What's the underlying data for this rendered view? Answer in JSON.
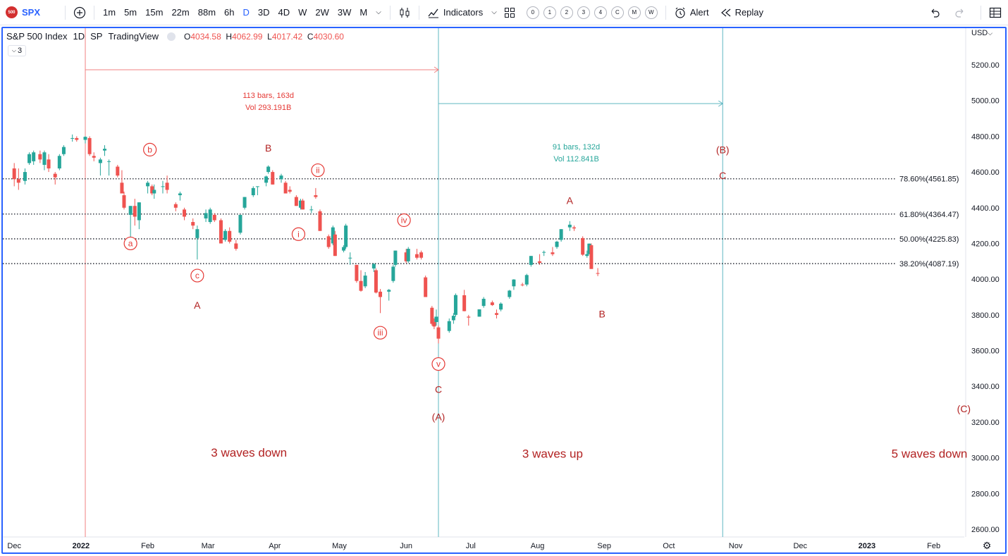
{
  "toolbar": {
    "symbol_logo": "500",
    "symbol": "SPX",
    "intervals": [
      "1m",
      "5m",
      "15m",
      "22m",
      "88m",
      "6h",
      "D",
      "3D",
      "4D",
      "W",
      "2W",
      "3W",
      "M"
    ],
    "active_interval": "D",
    "indicators_label": "Indicators",
    "layout_slots": [
      "0",
      "1",
      "2",
      "3",
      "4",
      "C",
      "M",
      "W"
    ],
    "alert_label": "Alert",
    "replay_label": "Replay"
  },
  "legend": {
    "title": "S&P 500 Index",
    "interval": "1D",
    "exchange": "SP",
    "source": "TradingView",
    "o_label": "O",
    "o_value": "4034.58",
    "h_label": "H",
    "h_value": "4062.99",
    "l_label": "L",
    "l_value": "4017.42",
    "c_label": "C",
    "c_value": "4030.60",
    "indicator_count": "3"
  },
  "currency": "USD",
  "colors": {
    "up": "#26a69a",
    "down": "#ef5350",
    "label": "#b22222",
    "fib": "#131722",
    "range_red": "#f08080",
    "range_teal": "#5fb7c2",
    "accent": "#2962ff"
  },
  "chart_data": {
    "type": "candlestick",
    "title": "S&P 500 Index",
    "y_axis": {
      "min": 2600,
      "max": 5200,
      "ticks": [
        "5200.00",
        "5000.00",
        "4800.00",
        "4600.00",
        "4400.00",
        "4200.00",
        "4000.00",
        "3800.00",
        "3600.00",
        "3400.00",
        "3200.00",
        "3000.00",
        "2800.00",
        "2600.00"
      ]
    },
    "x_axis": {
      "ticks": [
        "Dec",
        "2022",
        "Feb",
        "Mar",
        "Apr",
        "May",
        "Jun",
        "Jul",
        "Aug",
        "Sep",
        "Oct",
        "Nov",
        "Dec",
        "2023",
        "Feb"
      ],
      "bold_ticks": [
        "2022",
        "2023"
      ]
    },
    "fib_levels": [
      {
        "label": "78.60%(4561.85)",
        "value": 4561.85
      },
      {
        "label": "61.80%(4364.47)",
        "value": 4364.47
      },
      {
        "label": "50.00%(4225.83)",
        "value": 4225.83
      },
      {
        "label": "38.20%(4087.19)",
        "value": 4087.19
      }
    ],
    "date_ranges": [
      {
        "line1": "113 bars, 163d",
        "line2": "Vol 293.191B",
        "color": "red",
        "start": "2022-01-03",
        "end": "2022-06-16"
      },
      {
        "line1": "91 bars, 132d",
        "line2": "Vol 112.841B",
        "color": "teal",
        "start": "2022-06-16",
        "end": "2022-10-26"
      }
    ],
    "wave_labels": [
      {
        "text": "a",
        "circled": true,
        "date": "2022-01-24",
        "price": 4200
      },
      {
        "text": "b",
        "circled": true,
        "date": "2022-02-02",
        "price": 4725
      },
      {
        "text": "c",
        "circled": true,
        "date": "2022-02-24",
        "price": 4020
      },
      {
        "text": "A",
        "circled": false,
        "date": "2022-02-24",
        "price": 3855
      },
      {
        "text": "B",
        "circled": false,
        "date": "2022-03-29",
        "price": 4735
      },
      {
        "text": "ii",
        "circled": true,
        "date": "2022-04-21",
        "price": 4610
      },
      {
        "text": "i",
        "circled": true,
        "date": "2022-04-12",
        "price": 4252
      },
      {
        "text": "iv",
        "circled": true,
        "date": "2022-05-31",
        "price": 4330
      },
      {
        "text": "iii",
        "circled": true,
        "date": "2022-05-20",
        "price": 3700
      },
      {
        "text": "v",
        "circled": true,
        "date": "2022-06-16",
        "price": 3525
      },
      {
        "text": "C",
        "circled": false,
        "date": "2022-06-16",
        "price": 3383
      },
      {
        "text": "(A)",
        "circled": false,
        "date": "2022-06-16",
        "price": 3230
      },
      {
        "text": "A",
        "circled": false,
        "date": "2022-08-16",
        "price": 4440
      },
      {
        "text": "B",
        "circled": false,
        "date": "2022-08-31",
        "price": 3805
      },
      {
        "text": "(B)",
        "circled": false,
        "date": "2022-10-26",
        "price": 4725
      },
      {
        "text": "C",
        "circled": false,
        "date": "2022-10-26",
        "price": 4580
      },
      {
        "text": "(C)",
        "circled": false,
        "date": "2023-02-15",
        "price": 3275
      }
    ],
    "annotations": [
      {
        "text": "3 waves down",
        "date": "2022-03-20",
        "price": 3030
      },
      {
        "text": "3 waves up",
        "date": "2022-08-08",
        "price": 3025
      },
      {
        "text": "5 waves down",
        "date": "2023-01-30",
        "price": 3025
      }
    ],
    "candles": [
      {
        "x": "2021-12-01",
        "o": 4620,
        "h": 4650,
        "l": 4520,
        "c": 4560
      },
      {
        "x": "2021-12-03",
        "o": 4560,
        "h": 4620,
        "l": 4500,
        "c": 4540
      },
      {
        "x": "2021-12-06",
        "o": 4550,
        "h": 4620,
        "l": 4530,
        "c": 4600
      },
      {
        "x": "2021-12-08",
        "o": 4650,
        "h": 4710,
        "l": 4640,
        "c": 4700
      },
      {
        "x": "2021-12-10",
        "o": 4660,
        "h": 4720,
        "l": 4640,
        "c": 4710
      },
      {
        "x": "2021-12-13",
        "o": 4700,
        "h": 4720,
        "l": 4650,
        "c": 4670
      },
      {
        "x": "2021-12-15",
        "o": 4640,
        "h": 4720,
        "l": 4610,
        "c": 4710
      },
      {
        "x": "2021-12-17",
        "o": 4670,
        "h": 4700,
        "l": 4600,
        "c": 4620
      },
      {
        "x": "2021-12-20",
        "o": 4590,
        "h": 4600,
        "l": 4530,
        "c": 4570
      },
      {
        "x": "2021-12-22",
        "o": 4620,
        "h": 4700,
        "l": 4610,
        "c": 4690
      },
      {
        "x": "2021-12-24",
        "o": 4700,
        "h": 4750,
        "l": 4690,
        "c": 4740
      },
      {
        "x": "2021-12-28",
        "o": 4790,
        "h": 4810,
        "l": 4770,
        "c": 4790
      },
      {
        "x": "2021-12-30",
        "o": 4790,
        "h": 4800,
        "l": 4770,
        "c": 4780
      },
      {
        "x": "2022-01-03",
        "o": 4780,
        "h": 4800,
        "l": 4760,
        "c": 4797
      },
      {
        "x": "2022-01-05",
        "o": 4790,
        "h": 4800,
        "l": 4690,
        "c": 4700
      },
      {
        "x": "2022-01-07",
        "o": 4690,
        "h": 4710,
        "l": 4660,
        "c": 4680
      },
      {
        "x": "2022-01-10",
        "o": 4650,
        "h": 4680,
        "l": 4580,
        "c": 4670
      },
      {
        "x": "2022-01-12",
        "o": 4720,
        "h": 4750,
        "l": 4690,
        "c": 4730
      },
      {
        "x": "2022-01-14",
        "o": 4660,
        "h": 4670,
        "l": 4580,
        "c": 4660
      },
      {
        "x": "2022-01-18",
        "o": 4630,
        "h": 4640,
        "l": 4570,
        "c": 4580
      },
      {
        "x": "2022-01-20",
        "o": 4540,
        "h": 4610,
        "l": 4480,
        "c": 4480
      },
      {
        "x": "2022-01-21",
        "o": 4470,
        "h": 4490,
        "l": 4390,
        "c": 4400
      },
      {
        "x": "2022-01-24",
        "o": 4360,
        "h": 4410,
        "l": 4220,
        "c": 4410
      },
      {
        "x": "2022-01-26",
        "o": 4410,
        "h": 4450,
        "l": 4300,
        "c": 4350
      },
      {
        "x": "2022-01-28",
        "o": 4330,
        "h": 4430,
        "l": 4280,
        "c": 4430
      },
      {
        "x": "2022-02-01",
        "o": 4520,
        "h": 4550,
        "l": 4480,
        "c": 4540
      },
      {
        "x": "2022-02-03",
        "o": 4520,
        "h": 4530,
        "l": 4470,
        "c": 4480
      },
      {
        "x": "2022-02-04",
        "o": 4480,
        "h": 4530,
        "l": 4450,
        "c": 4500
      },
      {
        "x": "2022-02-08",
        "o": 4520,
        "h": 4550,
        "l": 4480,
        "c": 4520
      },
      {
        "x": "2022-02-10",
        "o": 4540,
        "h": 4580,
        "l": 4480,
        "c": 4500
      },
      {
        "x": "2022-02-14",
        "o": 4420,
        "h": 4430,
        "l": 4380,
        "c": 4400
      },
      {
        "x": "2022-02-16",
        "o": 4470,
        "h": 4490,
        "l": 4440,
        "c": 4480
      },
      {
        "x": "2022-02-18",
        "o": 4390,
        "h": 4400,
        "l": 4330,
        "c": 4350
      },
      {
        "x": "2022-02-22",
        "o": 4320,
        "h": 4340,
        "l": 4280,
        "c": 4300
      },
      {
        "x": "2022-02-24",
        "o": 4230,
        "h": 4300,
        "l": 4110,
        "c": 4280
      },
      {
        "x": "2022-02-28",
        "o": 4340,
        "h": 4390,
        "l": 4320,
        "c": 4370
      },
      {
        "x": "2022-03-02",
        "o": 4320,
        "h": 4400,
        "l": 4310,
        "c": 4390
      },
      {
        "x": "2022-03-04",
        "o": 4360,
        "h": 4370,
        "l": 4320,
        "c": 4330
      },
      {
        "x": "2022-03-07",
        "o": 4330,
        "h": 4340,
        "l": 4200,
        "c": 4200
      },
      {
        "x": "2022-03-09",
        "o": 4220,
        "h": 4280,
        "l": 4210,
        "c": 4270
      },
      {
        "x": "2022-03-11",
        "o": 4270,
        "h": 4290,
        "l": 4200,
        "c": 4210
      },
      {
        "x": "2022-03-14",
        "o": 4200,
        "h": 4220,
        "l": 4160,
        "c": 4170
      },
      {
        "x": "2022-03-16",
        "o": 4260,
        "h": 4360,
        "l": 4250,
        "c": 4360
      },
      {
        "x": "2022-03-18",
        "o": 4400,
        "h": 4460,
        "l": 4390,
        "c": 4460
      },
      {
        "x": "2022-03-22",
        "o": 4470,
        "h": 4520,
        "l": 4460,
        "c": 4510
      },
      {
        "x": "2022-03-24",
        "o": 4520,
        "h": 4520,
        "l": 4470,
        "c": 4520
      },
      {
        "x": "2022-03-28",
        "o": 4540,
        "h": 4580,
        "l": 4520,
        "c": 4575
      },
      {
        "x": "2022-03-29",
        "o": 4600,
        "h": 4637,
        "l": 4590,
        "c": 4630
      },
      {
        "x": "2022-03-31",
        "o": 4600,
        "h": 4610,
        "l": 4530,
        "c": 4530
      },
      {
        "x": "2022-04-04",
        "o": 4560,
        "h": 4590,
        "l": 4540,
        "c": 4580
      },
      {
        "x": "2022-04-06",
        "o": 4540,
        "h": 4550,
        "l": 4480,
        "c": 4480
      },
      {
        "x": "2022-04-08",
        "o": 4500,
        "h": 4520,
        "l": 4480,
        "c": 4490
      },
      {
        "x": "2022-04-11",
        "o": 4460,
        "h": 4470,
        "l": 4410,
        "c": 4410
      },
      {
        "x": "2022-04-13",
        "o": 4400,
        "h": 4450,
        "l": 4390,
        "c": 4440
      },
      {
        "x": "2022-04-14",
        "o": 4440,
        "h": 4450,
        "l": 4390,
        "c": 4390
      },
      {
        "x": "2022-04-18",
        "o": 4390,
        "h": 4410,
        "l": 4370,
        "c": 4390
      },
      {
        "x": "2022-04-20",
        "o": 4470,
        "h": 4510,
        "l": 4450,
        "c": 4460
      },
      {
        "x": "2022-04-22",
        "o": 4380,
        "h": 4390,
        "l": 4270,
        "c": 4270
      },
      {
        "x": "2022-04-26",
        "o": 4240,
        "h": 4250,
        "l": 4170,
        "c": 4180
      },
      {
        "x": "2022-04-28",
        "o": 4200,
        "h": 4300,
        "l": 4190,
        "c": 4290
      },
      {
        "x": "2022-04-29",
        "o": 4250,
        "h": 4270,
        "l": 4130,
        "c": 4130
      },
      {
        "x": "2022-05-03",
        "o": 4160,
        "h": 4190,
        "l": 4150,
        "c": 4180
      },
      {
        "x": "2022-05-04",
        "o": 4180,
        "h": 4310,
        "l": 4170,
        "c": 4300
      },
      {
        "x": "2022-05-06",
        "o": 4120,
        "h": 4150,
        "l": 4080,
        "c": 4120
      },
      {
        "x": "2022-05-09",
        "o": 4080,
        "h": 4080,
        "l": 3980,
        "c": 3990
      },
      {
        "x": "2022-05-11",
        "o": 3990,
        "h": 4050,
        "l": 3930,
        "c": 3935
      },
      {
        "x": "2022-05-13",
        "o": 3960,
        "h": 4040,
        "l": 3950,
        "c": 4020
      },
      {
        "x": "2022-05-17",
        "o": 4060,
        "h": 4090,
        "l": 4040,
        "c": 4085
      },
      {
        "x": "2022-05-18",
        "o": 4050,
        "h": 4060,
        "l": 3920,
        "c": 3925
      },
      {
        "x": "2022-05-20",
        "o": 3930,
        "h": 3945,
        "l": 3810,
        "c": 3900
      },
      {
        "x": "2022-05-24",
        "o": 3930,
        "h": 3945,
        "l": 3880,
        "c": 3940
      },
      {
        "x": "2022-05-26",
        "o": 3990,
        "h": 4080,
        "l": 3980,
        "c": 4070
      },
      {
        "x": "2022-05-27",
        "o": 4080,
        "h": 4160,
        "l": 4070,
        "c": 4160
      },
      {
        "x": "2022-06-01",
        "o": 4150,
        "h": 4170,
        "l": 4090,
        "c": 4100
      },
      {
        "x": "2022-06-02",
        "o": 4100,
        "h": 4180,
        "l": 4090,
        "c": 4170
      },
      {
        "x": "2022-06-06",
        "o": 4140,
        "h": 4170,
        "l": 4110,
        "c": 4120
      },
      {
        "x": "2022-06-08",
        "o": 4150,
        "h": 4160,
        "l": 4110,
        "c": 4120
      },
      {
        "x": "2022-06-10",
        "o": 4010,
        "h": 4020,
        "l": 3900,
        "c": 3900
      },
      {
        "x": "2022-06-13",
        "o": 3840,
        "h": 3850,
        "l": 3740,
        "c": 3750
      },
      {
        "x": "2022-06-14",
        "o": 3760,
        "h": 3780,
        "l": 3720,
        "c": 3735
      },
      {
        "x": "2022-06-15",
        "o": 3760,
        "h": 3830,
        "l": 3740,
        "c": 3790
      },
      {
        "x": "2022-06-16",
        "o": 3730,
        "h": 3740,
        "l": 3640,
        "c": 3667
      },
      {
        "x": "2022-06-21",
        "o": 3710,
        "h": 3780,
        "l": 3700,
        "c": 3765
      },
      {
        "x": "2022-06-23",
        "o": 3770,
        "h": 3810,
        "l": 3750,
        "c": 3795
      },
      {
        "x": "2022-06-24",
        "o": 3800,
        "h": 3920,
        "l": 3790,
        "c": 3911
      },
      {
        "x": "2022-06-28",
        "o": 3910,
        "h": 3940,
        "l": 3820,
        "c": 3821
      },
      {
        "x": "2022-06-30",
        "o": 3790,
        "h": 3800,
        "l": 3740,
        "c": 3785
      },
      {
        "x": "2022-07-05",
        "o": 3790,
        "h": 3830,
        "l": 3790,
        "c": 3831
      },
      {
        "x": "2022-07-07",
        "o": 3850,
        "h": 3900,
        "l": 3840,
        "c": 3890
      },
      {
        "x": "2022-07-11",
        "o": 3870,
        "h": 3880,
        "l": 3850,
        "c": 3855
      },
      {
        "x": "2022-07-13",
        "o": 3810,
        "h": 3830,
        "l": 3780,
        "c": 3800
      },
      {
        "x": "2022-07-15",
        "o": 3830,
        "h": 3870,
        "l": 3820,
        "c": 3863
      },
      {
        "x": "2022-07-19",
        "o": 3900,
        "h": 3940,
        "l": 3890,
        "c": 3936
      },
      {
        "x": "2022-07-21",
        "o": 3960,
        "h": 4000,
        "l": 3940,
        "c": 3998
      },
      {
        "x": "2022-07-25",
        "o": 3970,
        "h": 3980,
        "l": 3960,
        "c": 3966
      },
      {
        "x": "2022-07-27",
        "o": 3970,
        "h": 4030,
        "l": 3960,
        "c": 4023
      },
      {
        "x": "2022-07-29",
        "o": 4080,
        "h": 4130,
        "l": 4070,
        "c": 4130
      },
      {
        "x": "2022-08-02",
        "o": 4100,
        "h": 4140,
        "l": 4080,
        "c": 4091
      },
      {
        "x": "2022-08-04",
        "o": 4150,
        "h": 4160,
        "l": 4130,
        "c": 4152
      },
      {
        "x": "2022-08-08",
        "o": 4150,
        "h": 4180,
        "l": 4130,
        "c": 4140
      },
      {
        "x": "2022-08-10",
        "o": 4180,
        "h": 4215,
        "l": 4170,
        "c": 4210
      },
      {
        "x": "2022-08-12",
        "o": 4220,
        "h": 4280,
        "l": 4210,
        "c": 4280
      },
      {
        "x": "2022-08-16",
        "o": 4290,
        "h": 4325,
        "l": 4270,
        "c": 4305
      },
      {
        "x": "2022-08-18",
        "o": 4290,
        "h": 4300,
        "l": 4270,
        "c": 4284
      },
      {
        "x": "2022-08-22",
        "o": 4230,
        "h": 4240,
        "l": 4130,
        "c": 4137
      },
      {
        "x": "2022-08-24",
        "o": 4130,
        "h": 4160,
        "l": 4120,
        "c": 4140
      },
      {
        "x": "2022-08-25",
        "o": 4140,
        "h": 4200,
        "l": 4140,
        "c": 4199
      },
      {
        "x": "2022-08-26",
        "o": 4190,
        "h": 4200,
        "l": 4060,
        "c": 4057
      },
      {
        "x": "2022-08-29",
        "o": 4034,
        "h": 4062,
        "l": 4017,
        "c": 4030
      }
    ]
  }
}
